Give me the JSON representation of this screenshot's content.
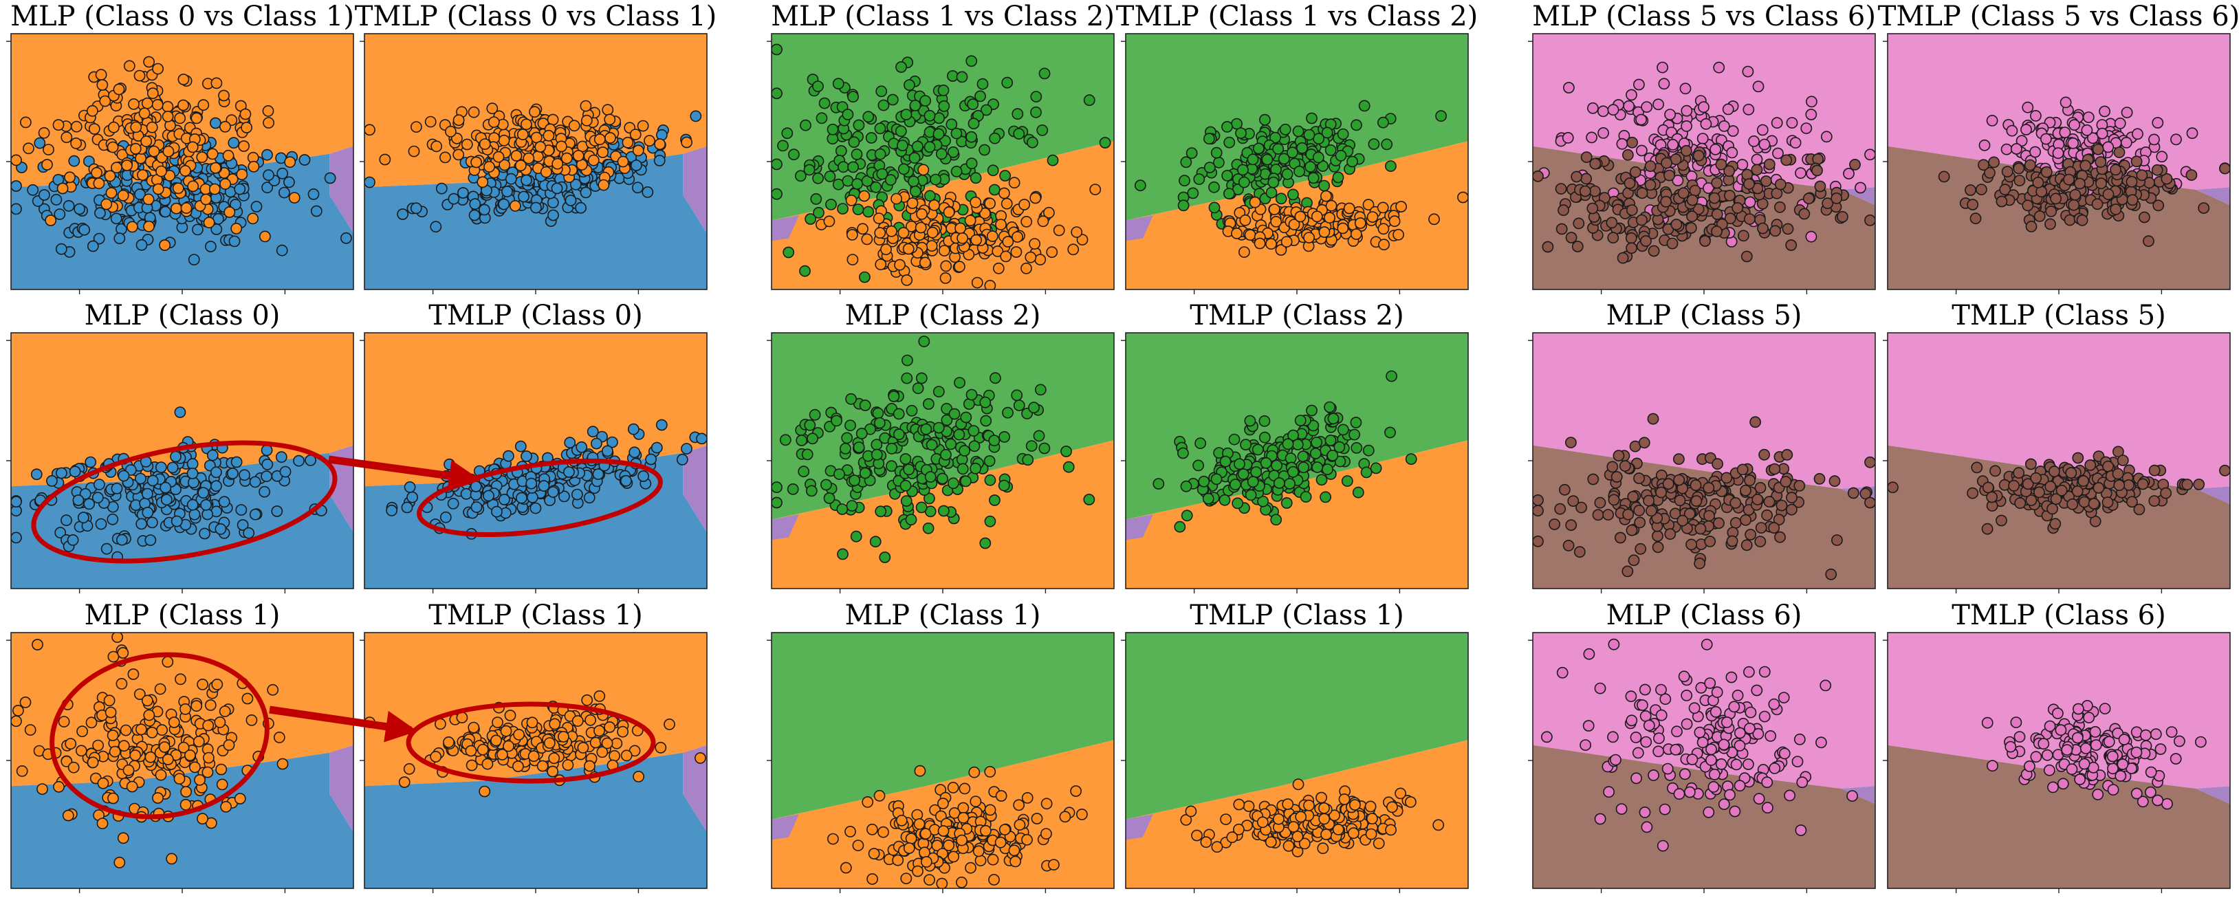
{
  "figure": {
    "colors": {
      "class0": "#3a8fc8",
      "class1": "#ff8c1f",
      "class2": "#2ca02c",
      "class5": "#8c564b",
      "class6": "#e377c2",
      "region_blue": "#4c94c6",
      "region_orange": "#ff9a3a",
      "region_green": "#58b357",
      "region_purple": "#a883c8",
      "region_brown": "#a0766b",
      "region_pink": "#e992cf",
      "annotation_red": "#c00000"
    }
  },
  "chart_data": [
    {
      "type": "scatter",
      "title": "MLP (Class 0 vs Class 1)",
      "model": "MLP",
      "classes": [
        0,
        1
      ],
      "regions": [
        "region_orange",
        "region_blue",
        "region_purple"
      ],
      "series": [
        {
          "class": 0,
          "color": "class0",
          "spread": "wide"
        },
        {
          "class": 1,
          "color": "class1",
          "spread": "wide"
        }
      ],
      "annotation": "none",
      "grid": false
    },
    {
      "type": "scatter",
      "title": "TMLP (Class 0 vs Class 1)",
      "model": "TMLP",
      "classes": [
        0,
        1
      ],
      "regions": [
        "region_orange",
        "region_blue",
        "region_purple"
      ],
      "series": [
        {
          "class": 0,
          "color": "class0",
          "spread": "tight"
        },
        {
          "class": 1,
          "color": "class1",
          "spread": "tight"
        }
      ],
      "annotation": "none",
      "grid": false
    },
    {
      "type": "scatter",
      "title": "MLP (Class 1 vs Class 2)",
      "model": "MLP",
      "classes": [
        1,
        2
      ],
      "regions": [
        "region_green",
        "region_orange",
        "region_purple"
      ],
      "series": [
        {
          "class": 2,
          "color": "class2",
          "spread": "wide"
        },
        {
          "class": 1,
          "color": "class1",
          "spread": "wide"
        }
      ],
      "annotation": "none",
      "grid": false
    },
    {
      "type": "scatter",
      "title": "TMLP (Class 1 vs Class 2)",
      "model": "TMLP",
      "classes": [
        1,
        2
      ],
      "regions": [
        "region_green",
        "region_orange",
        "region_purple"
      ],
      "series": [
        {
          "class": 2,
          "color": "class2",
          "spread": "tight"
        },
        {
          "class": 1,
          "color": "class1",
          "spread": "tight"
        }
      ],
      "annotation": "none",
      "grid": false
    },
    {
      "type": "scatter",
      "title": "MLP (Class 5 vs Class 6)",
      "model": "MLP",
      "classes": [
        5,
        6
      ],
      "regions": [
        "region_pink",
        "region_brown",
        "region_purple"
      ],
      "series": [
        {
          "class": 6,
          "color": "class6",
          "spread": "wide"
        },
        {
          "class": 5,
          "color": "class5",
          "spread": "wide"
        }
      ],
      "annotation": "none",
      "grid": false
    },
    {
      "type": "scatter",
      "title": "TMLP (Class 5 vs Class 6)",
      "model": "TMLP",
      "classes": [
        5,
        6
      ],
      "regions": [
        "region_pink",
        "region_brown",
        "region_purple"
      ],
      "series": [
        {
          "class": 6,
          "color": "class6",
          "spread": "tight"
        },
        {
          "class": 5,
          "color": "class5",
          "spread": "tight"
        }
      ],
      "annotation": "none",
      "grid": false
    },
    {
      "type": "scatter",
      "title": "MLP (Class 0)",
      "model": "MLP",
      "classes": [
        0
      ],
      "regions": [
        "region_orange",
        "region_blue",
        "region_purple"
      ],
      "series": [
        {
          "class": 0,
          "color": "class0",
          "spread": "wide"
        }
      ],
      "annotation": "ellipse-arrow-source",
      "grid": false
    },
    {
      "type": "scatter",
      "title": "TMLP (Class 0)",
      "model": "TMLP",
      "classes": [
        0
      ],
      "regions": [
        "region_orange",
        "region_blue",
        "region_purple"
      ],
      "series": [
        {
          "class": 0,
          "color": "class0",
          "spread": "tight"
        }
      ],
      "annotation": "ellipse-arrow-target",
      "grid": false
    },
    {
      "type": "scatter",
      "title": "MLP (Class 2)",
      "model": "MLP",
      "classes": [
        2
      ],
      "regions": [
        "region_green",
        "region_orange",
        "region_purple"
      ],
      "series": [
        {
          "class": 2,
          "color": "class2",
          "spread": "wide"
        }
      ],
      "annotation": "none",
      "grid": false
    },
    {
      "type": "scatter",
      "title": "TMLP (Class 2)",
      "model": "TMLP",
      "classes": [
        2
      ],
      "regions": [
        "region_green",
        "region_orange",
        "region_purple"
      ],
      "series": [
        {
          "class": 2,
          "color": "class2",
          "spread": "tight"
        }
      ],
      "annotation": "none",
      "grid": false
    },
    {
      "type": "scatter",
      "title": "MLP (Class 5)",
      "model": "MLP",
      "classes": [
        5
      ],
      "regions": [
        "region_pink",
        "region_brown",
        "region_purple"
      ],
      "series": [
        {
          "class": 5,
          "color": "class5",
          "spread": "wide"
        }
      ],
      "annotation": "none",
      "grid": false
    },
    {
      "type": "scatter",
      "title": "TMLP (Class 5)",
      "model": "TMLP",
      "classes": [
        5
      ],
      "regions": [
        "region_pink",
        "region_brown",
        "region_purple"
      ],
      "series": [
        {
          "class": 5,
          "color": "class5",
          "spread": "tight"
        }
      ],
      "annotation": "none",
      "grid": false
    },
    {
      "type": "scatter",
      "title": "MLP (Class 1)",
      "model": "MLP",
      "classes": [
        1
      ],
      "regions": [
        "region_orange",
        "region_blue",
        "region_purple"
      ],
      "series": [
        {
          "class": 1,
          "color": "class1",
          "spread": "wide"
        }
      ],
      "annotation": "ellipse-arrow-source",
      "grid": false
    },
    {
      "type": "scatter",
      "title": "TMLP (Class 1)",
      "model": "TMLP",
      "classes": [
        1
      ],
      "regions": [
        "region_orange",
        "region_blue",
        "region_purple"
      ],
      "series": [
        {
          "class": 1,
          "color": "class1",
          "spread": "tight"
        }
      ],
      "annotation": "ellipse-arrow-target",
      "grid": false
    },
    {
      "type": "scatter",
      "title": "MLP (Class 1)",
      "model": "MLP",
      "classes": [
        1
      ],
      "regions": [
        "region_green",
        "region_orange",
        "region_purple"
      ],
      "series": [
        {
          "class": 1,
          "color": "class1",
          "spread": "wide"
        }
      ],
      "annotation": "none",
      "grid": false
    },
    {
      "type": "scatter",
      "title": "TMLP (Class 1)",
      "model": "TMLP",
      "classes": [
        1
      ],
      "regions": [
        "region_green",
        "region_orange",
        "region_purple"
      ],
      "series": [
        {
          "class": 1,
          "color": "class1",
          "spread": "tight"
        }
      ],
      "annotation": "none",
      "grid": false
    },
    {
      "type": "scatter",
      "title": "MLP (Class 6)",
      "model": "MLP",
      "classes": [
        6
      ],
      "regions": [
        "region_pink",
        "region_brown",
        "region_purple"
      ],
      "series": [
        {
          "class": 6,
          "color": "class6",
          "spread": "wide"
        }
      ],
      "annotation": "none",
      "grid": false
    },
    {
      "type": "scatter",
      "title": "TMLP (Class 6)",
      "model": "TMLP",
      "classes": [
        6
      ],
      "regions": [
        "region_pink",
        "region_brown",
        "region_purple"
      ],
      "series": [
        {
          "class": 6,
          "color": "class6",
          "spread": "tight"
        }
      ],
      "annotation": "none",
      "grid": false
    }
  ]
}
